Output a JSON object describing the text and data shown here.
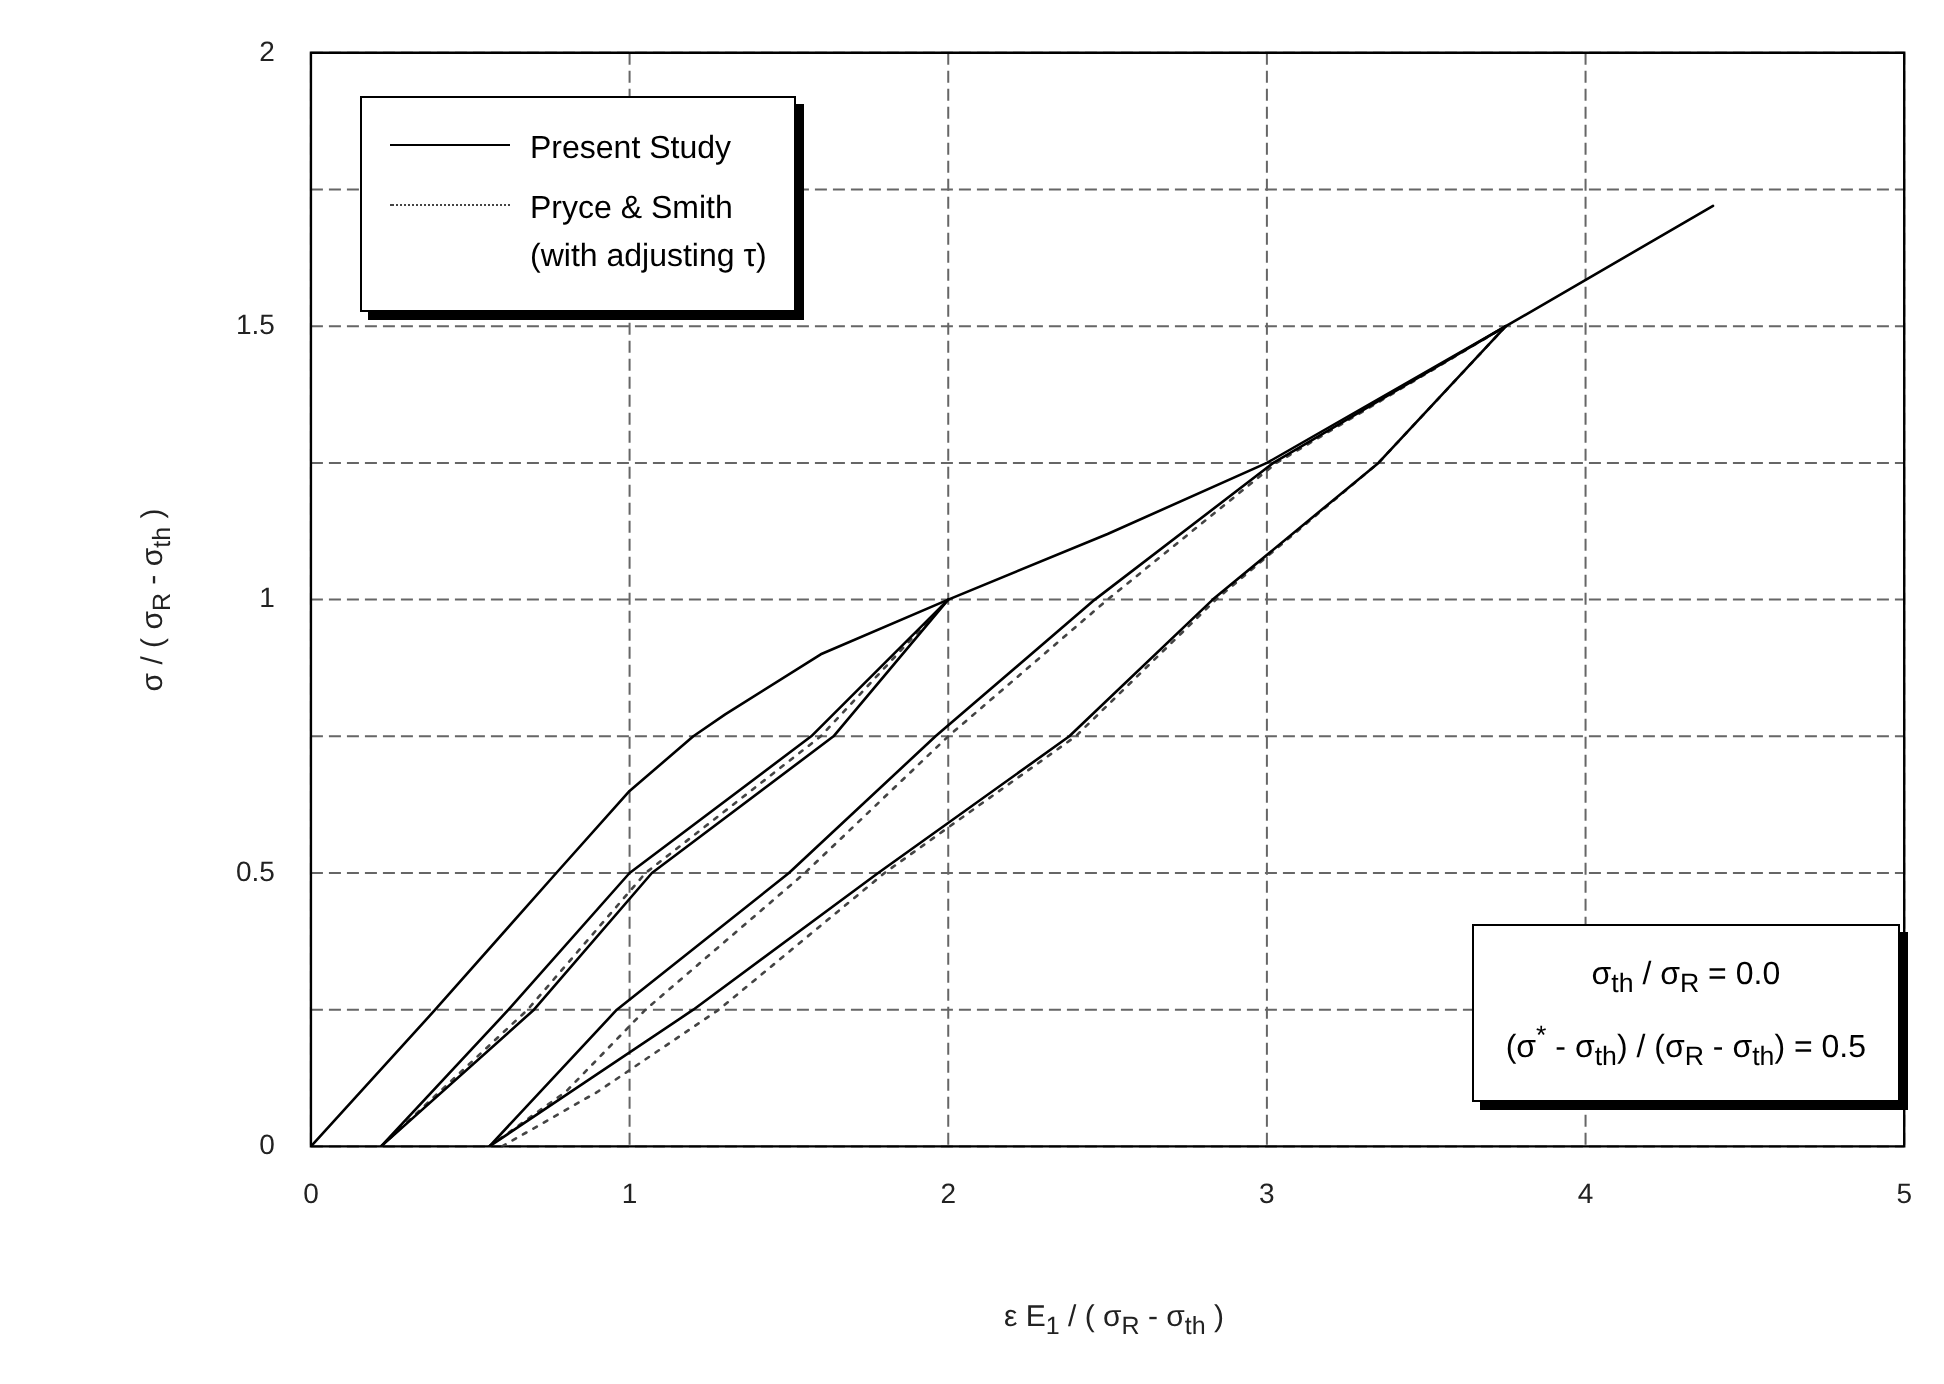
{
  "chart_data": {
    "type": "line",
    "xlabel": "ε E$_{1}$ / ( σ$_{R}$ - σ$_{th}$ )",
    "ylabel": "σ / ( σ$_{R}$ - σ$_{th}$ )",
    "xlim": [
      0,
      5
    ],
    "xticks": [
      0,
      1,
      2,
      3,
      4,
      5
    ],
    "ylim": [
      0,
      2
    ],
    "yticks": [
      0,
      {
        "value": 0.25,
        "label": null
      },
      0.5,
      {
        "value": 0.75,
        "label": null
      },
      1,
      {
        "value": 1.25,
        "label": null
      },
      1.5,
      {
        "value": 1.75,
        "label": null
      },
      2
    ],
    "grid": true,
    "legend": "top left",
    "marker": "none",
    "annotations": [
      "σ$_{th}$ / σ$_{R}$ = 0.0",
      "(σ$^{*}$ - σ$_{th}$) / (σ$_{R}$ - σ$_{th}$) = 0.5"
    ],
    "series": [
      {
        "name": "Present Study",
        "color": "#000000",
        "line_style": "solid",
        "x": [
          0,
          0.39,
          0.77,
          1.0,
          1.2,
          1.3,
          1.6,
          2,
          2.5,
          3,
          3.75,
          4.4
        ],
        "values": [
          0,
          0.25,
          0.5,
          0.65,
          0.75,
          0.79,
          0.9,
          1,
          1.12,
          1.25,
          1.5,
          1.72
        ]
      },
      {
        "color": "#000000",
        "line_style": "solid",
        "x": [
          2,
          1.57,
          1.0,
          0.62,
          0.22
        ],
        "values": [
          1,
          0.75,
          0.5,
          0.25,
          0
        ]
      },
      {
        "color": "#000000",
        "line_style": "solid",
        "x": [
          0.22,
          0.7,
          1.07,
          1.64,
          2
        ],
        "values": [
          0,
          0.25,
          0.5,
          0.75,
          1
        ]
      },
      {
        "color": "#000000",
        "line_style": "solid",
        "x": [
          3.75,
          3.35,
          2.83,
          2.38,
          1.78,
          1.2,
          0.56
        ],
        "values": [
          1.5,
          1.25,
          1,
          0.75,
          0.5,
          0.25,
          0
        ]
      },
      {
        "color": "#000000",
        "line_style": "solid",
        "x": [
          0.56,
          0.96,
          1.5,
          1.96,
          2.46,
          3.02,
          3.75
        ],
        "values": [
          0,
          0.25,
          0.5,
          0.75,
          1,
          1.25,
          1.5
        ]
      },
      {
        "name": "Pryce & Smith\n(with adjusting τ)",
        "color": "#444444",
        "line_style": "dotted",
        "x": [
          0.22,
          0.68,
          1.05,
          1.6,
          2
        ],
        "values": [
          0,
          0.25,
          0.5,
          0.75,
          1
        ]
      },
      {
        "color": "#444444",
        "line_style": "dotted",
        "x": [
          0.56,
          0.8,
          1.05,
          1.55,
          2.0,
          2.5,
          3.03,
          3.75
        ],
        "values": [
          0,
          0.1,
          0.25,
          0.5,
          0.75,
          1,
          1.25,
          1.5
        ]
      },
      {
        "color": "#444444",
        "line_style": "dotted",
        "x": [
          0.6,
          0.9,
          1.28,
          1.8,
          2.4,
          2.84,
          3.35,
          3.75
        ],
        "values": [
          0,
          0.1,
          0.25,
          0.5,
          0.75,
          1,
          1.25,
          1.5
        ]
      }
    ]
  }
}
